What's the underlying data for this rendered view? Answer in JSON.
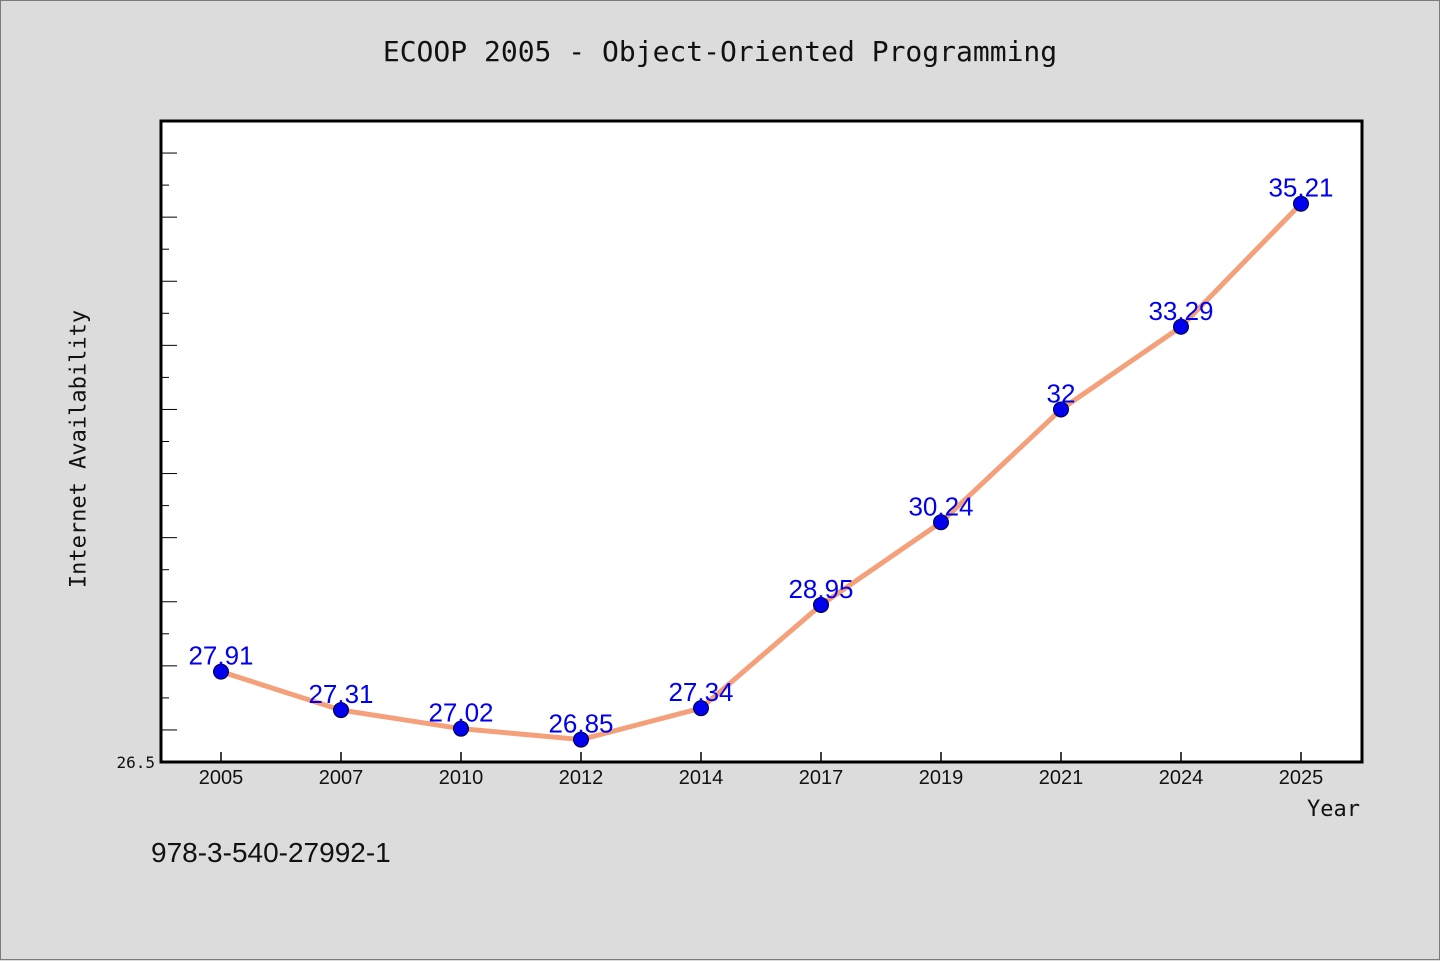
{
  "colors": {
    "background": "#dcdcdc",
    "plot_background": "#ffffff",
    "line": "#f4a07a",
    "marker": "#0000ee",
    "data_label": "#0000ee",
    "axis": "#000000"
  },
  "chart_data": {
    "type": "line",
    "title": "ECOOP 2005 - Object-Oriented Programming",
    "xlabel": "Year",
    "ylabel": "Internet Availability",
    "categories": [
      "2005",
      "2007",
      "2010",
      "2012",
      "2014",
      "2017",
      "2019",
      "2021",
      "2024",
      "2025"
    ],
    "series": [
      {
        "values": [
          27.91,
          27.31,
          27.02,
          26.85,
          27.34,
          28.95,
          30.24,
          32,
          33.29,
          35.21
        ],
        "data_labels": [
          "27.91",
          "27.31",
          "27.02",
          "26.85",
          "27.34",
          "28.95",
          "30.24",
          "32",
          "33.29",
          "35.21"
        ]
      }
    ],
    "ylim": [
      26.5,
      36.5
    ],
    "y_tick_labels": [
      "26.5"
    ],
    "grid": false,
    "legend": "none"
  },
  "footer": {
    "isbn": "978-3-540-27992-1"
  }
}
